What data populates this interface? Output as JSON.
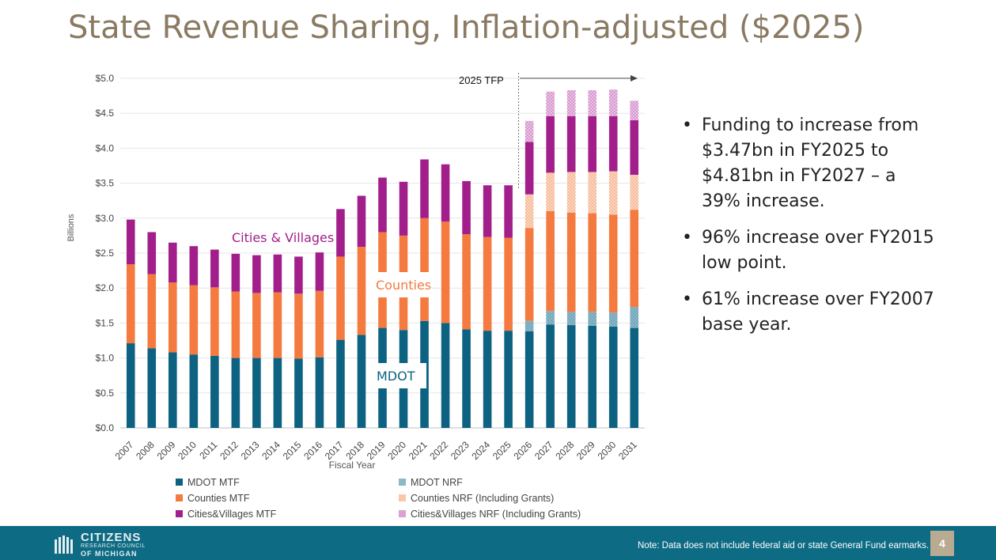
{
  "slide": {
    "title": "State Revenue Sharing, Inflation-adjusted ($2025)",
    "bullets": [
      "Funding to increase from $3.47bn in FY2025 to $4.81bn in FY2027 – a 39% increase.",
      "96% increase over FY2015 low point.",
      "61% increase over FY2007 base year."
    ],
    "bullet_glyph": "•",
    "footnote": "Note: Data does not include federal aid or state General Fund earmarks.",
    "page_number": "4",
    "logo": {
      "big": "CITIZENS",
      "small1": "RESEARCH COUNCIL",
      "small2": "OF MICHIGAN"
    },
    "colors": {
      "footer": "#0e6b84",
      "title": "#8a7a62",
      "page_box": "#b9aa92"
    }
  },
  "chart_data": {
    "type": "bar",
    "stacked": true,
    "xlabel": "Fiscal Year",
    "ylabel": "Billions",
    "ylim": [
      0,
      5.0
    ],
    "yticks": [
      "$0.0",
      "$0.5",
      "$1.0",
      "$1.5",
      "$2.0",
      "$2.5",
      "$3.0",
      "$3.5",
      "$4.0",
      "$4.5",
      "$5.0"
    ],
    "grid": true,
    "legend_position": "bottom",
    "categories": [
      "2007",
      "2008",
      "2009",
      "2010",
      "2011",
      "2012",
      "2013",
      "2014",
      "2015",
      "2016",
      "2017",
      "2018",
      "2019",
      "2020",
      "2021",
      "2022",
      "2023",
      "2024",
      "2025",
      "2026",
      "2027",
      "2028",
      "2029",
      "2030",
      "2031"
    ],
    "series": [
      {
        "name": "MDOT MTF",
        "color": "#0d6282",
        "pattern": "solid",
        "values": [
          1.21,
          1.14,
          1.08,
          1.05,
          1.03,
          1.0,
          1.0,
          1.0,
          0.99,
          1.01,
          1.26,
          1.33,
          1.43,
          1.4,
          1.53,
          1.5,
          1.41,
          1.39,
          1.39,
          1.38,
          1.48,
          1.47,
          1.46,
          1.45,
          1.43
        ]
      },
      {
        "name": "MDOT NRF",
        "color": "#8db8c8",
        "pattern": "hatch",
        "values": [
          0,
          0,
          0,
          0,
          0,
          0,
          0,
          0,
          0,
          0,
          0,
          0,
          0,
          0,
          0,
          0,
          0,
          0,
          0,
          0.15,
          0.19,
          0.19,
          0.2,
          0.2,
          0.3
        ]
      },
      {
        "name": "Counties MTF",
        "color": "#f47a3f",
        "pattern": "solid",
        "values": [
          1.13,
          1.06,
          1.0,
          0.99,
          0.98,
          0.95,
          0.93,
          0.94,
          0.93,
          0.95,
          1.19,
          1.26,
          1.37,
          1.35,
          1.47,
          1.45,
          1.36,
          1.34,
          1.33,
          1.33,
          1.43,
          1.42,
          1.41,
          1.4,
          1.39
        ]
      },
      {
        "name": "Counties NRF (Including Grants)",
        "color": "#f9c6a8",
        "pattern": "hatch",
        "values": [
          0,
          0,
          0,
          0,
          0,
          0,
          0,
          0,
          0,
          0,
          0,
          0,
          0,
          0,
          0,
          0,
          0,
          0,
          0,
          0.48,
          0.55,
          0.58,
          0.59,
          0.62,
          0.5
        ]
      },
      {
        "name": "Cities&Villages MTF",
        "color": "#a21f8b",
        "pattern": "solid",
        "values": [
          0.64,
          0.6,
          0.57,
          0.56,
          0.54,
          0.54,
          0.54,
          0.54,
          0.53,
          0.55,
          0.68,
          0.73,
          0.78,
          0.77,
          0.84,
          0.82,
          0.76,
          0.74,
          0.75,
          0.75,
          0.81,
          0.8,
          0.8,
          0.79,
          0.78
        ]
      },
      {
        "name": "Cities&Villages NRF (Including Grants)",
        "color": "#dda0d4",
        "pattern": "hatch",
        "values": [
          0,
          0,
          0,
          0,
          0,
          0,
          0,
          0,
          0,
          0,
          0,
          0,
          0,
          0,
          0,
          0,
          0,
          0,
          0,
          0.3,
          0.35,
          0.37,
          0.37,
          0.38,
          0.28
        ]
      }
    ],
    "annotations": {
      "cities_label": "Cities & Villages",
      "counties_label": "Counties",
      "mdot_label": "MDOT",
      "tfp_label": "2025 TFP"
    }
  }
}
